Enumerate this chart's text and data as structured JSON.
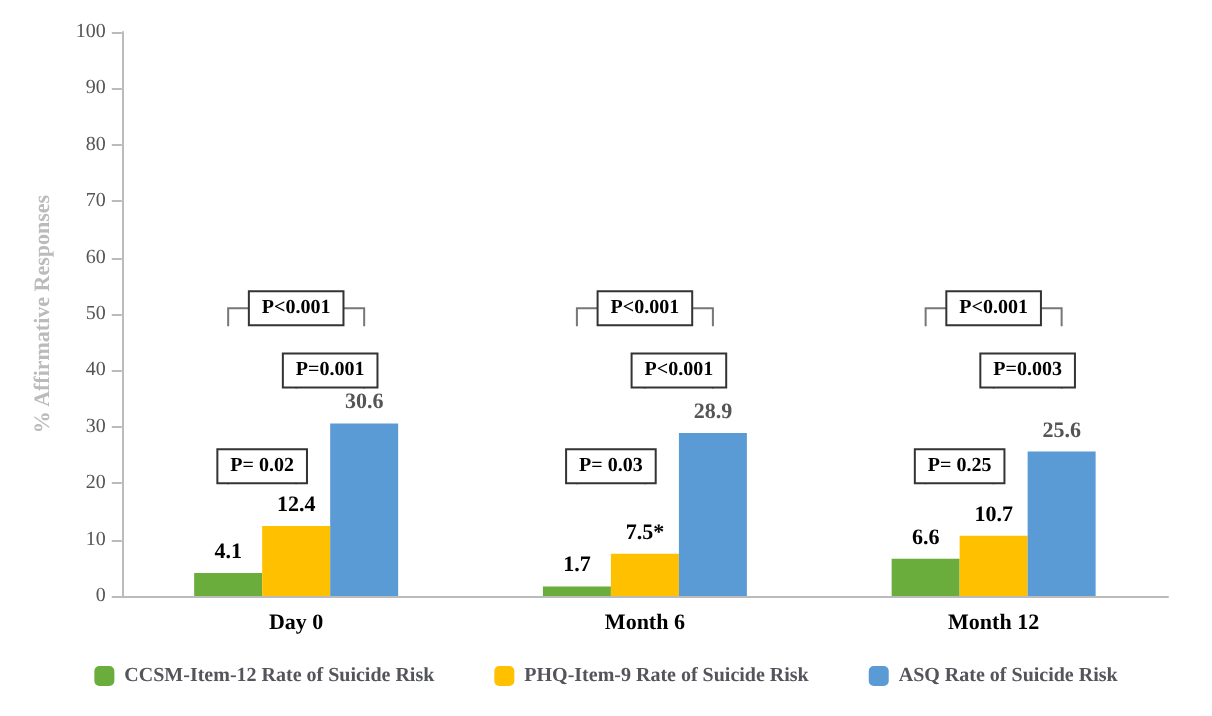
{
  "chart_data": {
    "type": "bar",
    "ylabel": "% Affirmative Responses",
    "categories": [
      "Day 0",
      "Month 6",
      "Month 12"
    ],
    "series": [
      {
        "name": "CCSM-Item-12 Rate of Suicide Risk",
        "color": "#6aad3d",
        "values": [
          4.1,
          1.7,
          6.6
        ],
        "value_labels": [
          "4.1",
          "1.7",
          "6.6"
        ]
      },
      {
        "name": "PHQ-Item-9 Rate of Suicide Risk",
        "color": "#ffc000",
        "values": [
          12.4,
          7.5,
          10.7
        ],
        "value_labels": [
          "12.4",
          "7.5*",
          "10.7"
        ]
      },
      {
        "name": "ASQ Rate of Suicide Risk",
        "color": "#5b9bd5",
        "values": [
          30.6,
          28.9,
          25.6
        ],
        "value_labels": [
          "30.6",
          "28.9",
          "25.6"
        ]
      }
    ],
    "ylim": [
      0,
      100
    ],
    "yticks": [
      0,
      10,
      20,
      30,
      40,
      50,
      60,
      70,
      80,
      90,
      100
    ],
    "grid": false,
    "legend": "bottom",
    "annotations": [
      "P<0.001",
      "P=0.001",
      "P= 0.02",
      "P<0.001",
      "P<0.001",
      "P= 0.03",
      "P<0.001",
      "P=0.003",
      "P= 0.25"
    ]
  }
}
